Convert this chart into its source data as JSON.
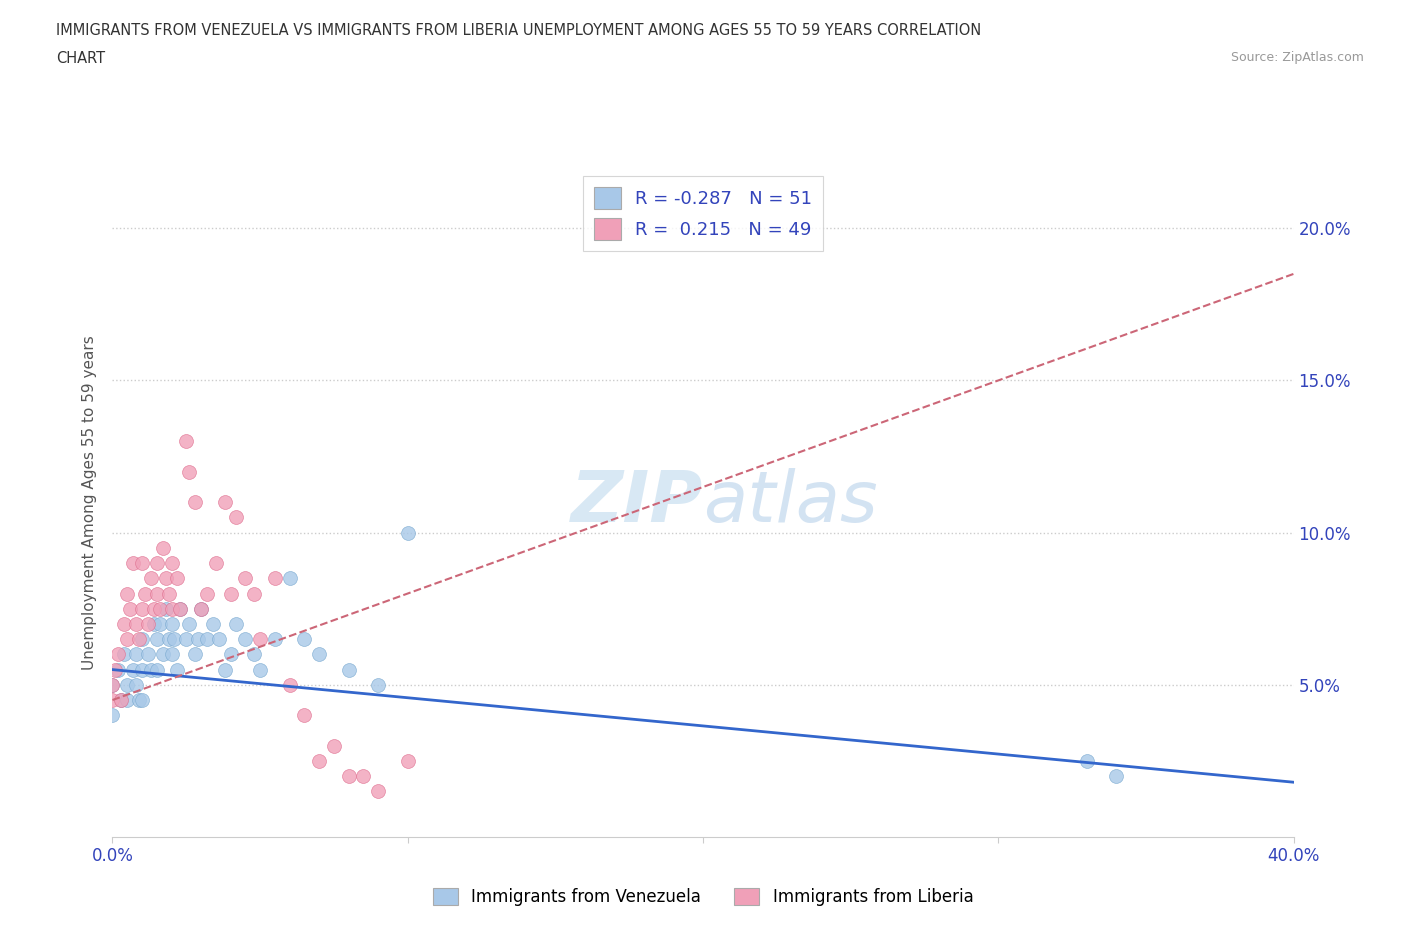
{
  "title_line1": "IMMIGRANTS FROM VENEZUELA VS IMMIGRANTS FROM LIBERIA UNEMPLOYMENT AMONG AGES 55 TO 59 YEARS CORRELATION",
  "title_line2": "CHART",
  "source_text": "Source: ZipAtlas.com",
  "ylabel": "Unemployment Among Ages 55 to 59 years",
  "xlim": [
    0.0,
    0.4
  ],
  "ylim": [
    0.0,
    0.22
  ],
  "xticks": [
    0.0,
    0.1,
    0.2,
    0.3,
    0.4
  ],
  "xticklabels_visible": [
    "0.0%",
    "",
    "",
    "",
    "40.0%"
  ],
  "yticks_left": [
    0.05,
    0.1,
    0.15,
    0.2
  ],
  "ytick_left_labels": [
    "5.0%",
    "10.0%",
    "15.0%",
    "20.0%"
  ],
  "yticks_right": [
    0.05,
    0.1,
    0.15,
    0.2
  ],
  "ytick_right_labels": [
    "5.0%",
    "10.0%",
    "15.0%",
    "20.0%"
  ],
  "venezuela_color": "#a8c8e8",
  "venezuela_edge": "#7aaad0",
  "liberia_color": "#f0a0b8",
  "liberia_edge": "#e07090",
  "venezuela_line_color": "#3366cc",
  "liberia_line_color": "#cc6677",
  "venezuela_R": -0.287,
  "venezuela_N": 51,
  "liberia_R": 0.215,
  "liberia_N": 49,
  "legend_text_color": "#3344bb",
  "watermark_color": "#c8dff0",
  "background_color": "#ffffff",
  "grid_color": "#cccccc",
  "venezuela_scatter_x": [
    0.0,
    0.0,
    0.002,
    0.003,
    0.004,
    0.005,
    0.005,
    0.007,
    0.008,
    0.008,
    0.009,
    0.01,
    0.01,
    0.01,
    0.012,
    0.013,
    0.014,
    0.015,
    0.015,
    0.016,
    0.017,
    0.018,
    0.019,
    0.02,
    0.02,
    0.021,
    0.022,
    0.023,
    0.025,
    0.026,
    0.028,
    0.029,
    0.03,
    0.032,
    0.034,
    0.036,
    0.038,
    0.04,
    0.042,
    0.045,
    0.048,
    0.05,
    0.055,
    0.06,
    0.065,
    0.07,
    0.08,
    0.09,
    0.1,
    0.33,
    0.34
  ],
  "venezuela_scatter_y": [
    0.05,
    0.04,
    0.055,
    0.045,
    0.06,
    0.05,
    0.045,
    0.055,
    0.06,
    0.05,
    0.045,
    0.065,
    0.055,
    0.045,
    0.06,
    0.055,
    0.07,
    0.065,
    0.055,
    0.07,
    0.06,
    0.075,
    0.065,
    0.07,
    0.06,
    0.065,
    0.055,
    0.075,
    0.065,
    0.07,
    0.06,
    0.065,
    0.075,
    0.065,
    0.07,
    0.065,
    0.055,
    0.06,
    0.07,
    0.065,
    0.06,
    0.055,
    0.065,
    0.085,
    0.065,
    0.06,
    0.055,
    0.05,
    0.1,
    0.025,
    0.02
  ],
  "liberia_scatter_x": [
    0.0,
    0.0,
    0.001,
    0.002,
    0.003,
    0.004,
    0.005,
    0.005,
    0.006,
    0.007,
    0.008,
    0.009,
    0.01,
    0.01,
    0.011,
    0.012,
    0.013,
    0.014,
    0.015,
    0.015,
    0.016,
    0.017,
    0.018,
    0.019,
    0.02,
    0.02,
    0.022,
    0.023,
    0.025,
    0.026,
    0.028,
    0.03,
    0.032,
    0.035,
    0.038,
    0.04,
    0.042,
    0.045,
    0.048,
    0.05,
    0.055,
    0.06,
    0.065,
    0.07,
    0.075,
    0.08,
    0.085,
    0.09,
    0.1
  ],
  "liberia_scatter_y": [
    0.05,
    0.045,
    0.055,
    0.06,
    0.045,
    0.07,
    0.08,
    0.065,
    0.075,
    0.09,
    0.07,
    0.065,
    0.09,
    0.075,
    0.08,
    0.07,
    0.085,
    0.075,
    0.09,
    0.08,
    0.075,
    0.095,
    0.085,
    0.08,
    0.09,
    0.075,
    0.085,
    0.075,
    0.13,
    0.12,
    0.11,
    0.075,
    0.08,
    0.09,
    0.11,
    0.08,
    0.105,
    0.085,
    0.08,
    0.065,
    0.085,
    0.05,
    0.04,
    0.025,
    0.03,
    0.02,
    0.02,
    0.015,
    0.025
  ]
}
